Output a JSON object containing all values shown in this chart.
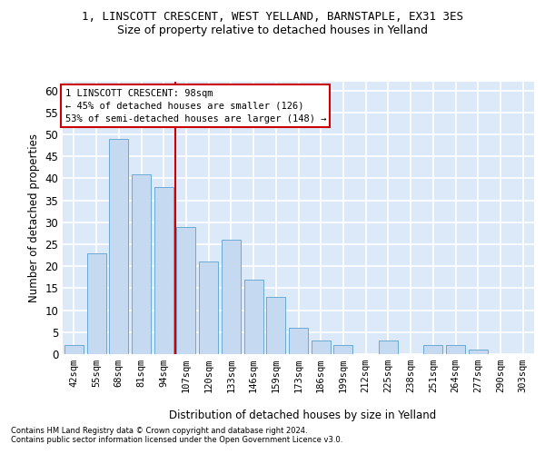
{
  "title1": "1, LINSCOTT CRESCENT, WEST YELLAND, BARNSTAPLE, EX31 3ES",
  "title2": "Size of property relative to detached houses in Yelland",
  "xlabel": "Distribution of detached houses by size in Yelland",
  "ylabel": "Number of detached properties",
  "bar_labels": [
    "42sqm",
    "55sqm",
    "68sqm",
    "81sqm",
    "94sqm",
    "107sqm",
    "120sqm",
    "133sqm",
    "146sqm",
    "159sqm",
    "173sqm",
    "186sqm",
    "199sqm",
    "212sqm",
    "225sqm",
    "238sqm",
    "251sqm",
    "264sqm",
    "277sqm",
    "290sqm",
    "303sqm"
  ],
  "bar_values": [
    2,
    23,
    49,
    41,
    38,
    29,
    21,
    26,
    17,
    13,
    6,
    3,
    2,
    0,
    3,
    0,
    2,
    2,
    1,
    0,
    0
  ],
  "bar_color": "#c5d9f0",
  "bar_edgecolor": "#6aaad4",
  "background_color": "#dce9f8",
  "grid_color": "#ffffff",
  "vline_index": 4.5,
  "vline_color": "#cc0000",
  "annotation_line1": "1 LINSCOTT CRESCENT: 98sqm",
  "annotation_line2": "← 45% of detached houses are smaller (126)",
  "annotation_line3": "53% of semi-detached houses are larger (148) →",
  "annotation_box_edgecolor": "#cc0000",
  "ylim": [
    0,
    62
  ],
  "yticks": [
    0,
    5,
    10,
    15,
    20,
    25,
    30,
    35,
    40,
    45,
    50,
    55,
    60
  ],
  "footnote1": "Contains HM Land Registry data © Crown copyright and database right 2024.",
  "footnote2": "Contains public sector information licensed under the Open Government Licence v3.0."
}
